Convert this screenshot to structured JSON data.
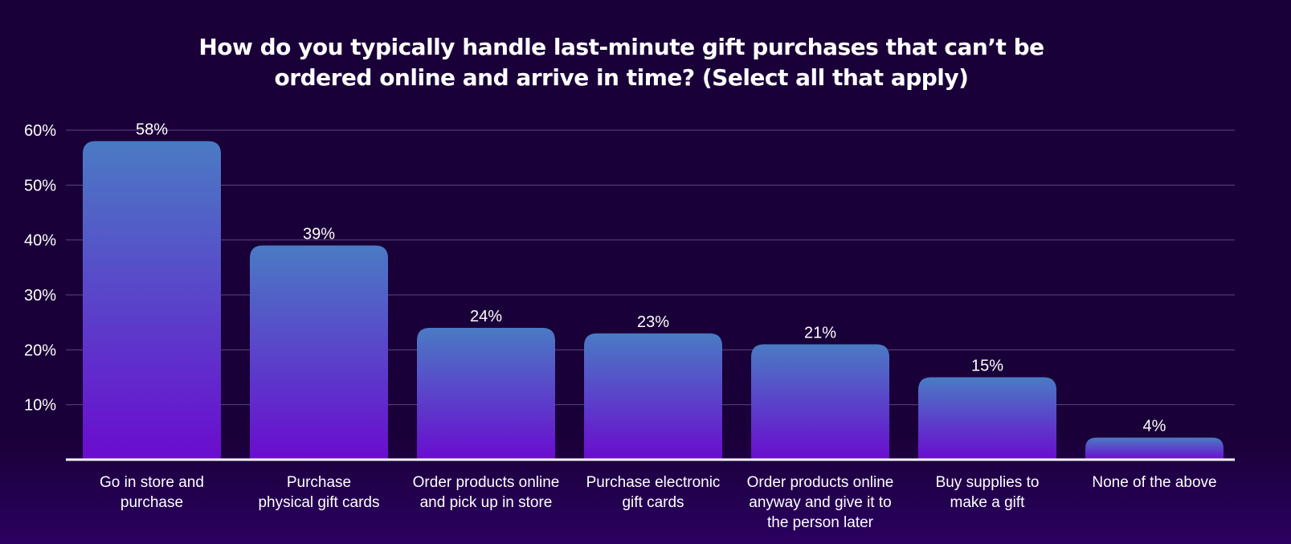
{
  "chart_data": {
    "type": "bar",
    "title_lines": [
      "How do you typically handle last-minute gift purchases that can’t be",
      "ordered online and arrive in time? (Select all that apply)"
    ],
    "categories": [
      [
        "Go in store and",
        "purchase"
      ],
      [
        "Purchase",
        "physical gift cards"
      ],
      [
        "Order products online",
        "and pick up in store"
      ],
      [
        "Purchase electronic",
        "gift cards"
      ],
      [
        "Order products online",
        "anyway and give it to",
        "the person later"
      ],
      [
        "Buy supplies to",
        "make a gift"
      ],
      [
        "None of the above"
      ]
    ],
    "values": [
      58,
      39,
      24,
      23,
      21,
      15,
      4
    ],
    "value_labels": [
      "58%",
      "39%",
      "24%",
      "23%",
      "21%",
      "15%",
      "4%"
    ],
    "yticks": [
      10,
      20,
      30,
      40,
      50,
      60
    ],
    "ytick_labels": [
      "10%",
      "20%",
      "30%",
      "40%",
      "50%",
      "60%"
    ],
    "ylim": [
      0,
      60
    ],
    "grid": true,
    "legend": "none",
    "colors": {
      "background": "#1a0038",
      "bar_top": "#4a7bc4",
      "bar_bottom": "#6a0ccf",
      "gridline": "#5a4680",
      "baseline": "#ffffff"
    }
  }
}
